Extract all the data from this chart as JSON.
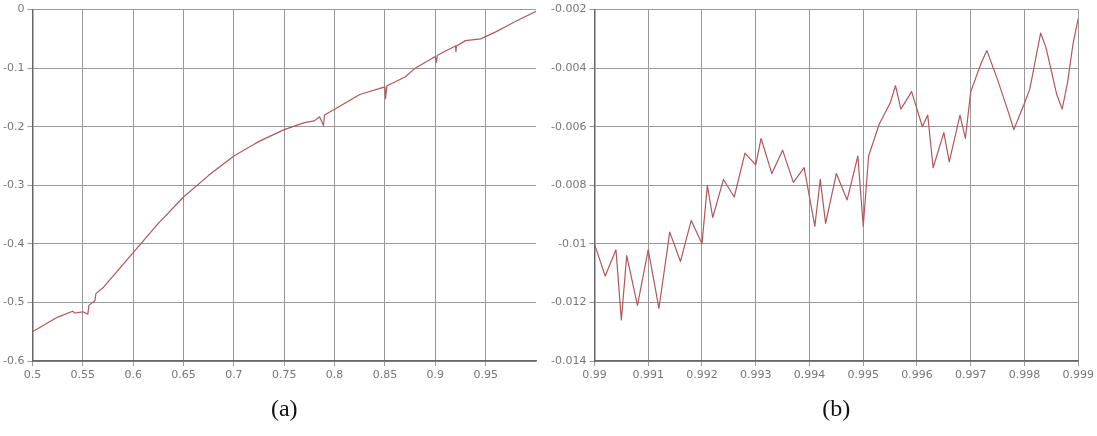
{
  "chart_data": [
    {
      "type": "line",
      "xlabel": "(a)",
      "x": [
        0.5,
        0.525,
        0.54,
        0.542,
        0.55,
        0.555,
        0.556,
        0.562,
        0.563,
        0.57,
        0.58,
        0.6,
        0.625,
        0.65,
        0.675,
        0.7,
        0.725,
        0.75,
        0.77,
        0.78,
        0.785,
        0.789,
        0.79,
        0.8,
        0.825,
        0.85,
        0.8505,
        0.852,
        0.87,
        0.88,
        0.9,
        0.901,
        0.902,
        0.92,
        0.9205,
        0.921,
        0.93,
        0.945,
        0.96,
        0.98,
        1.0
      ],
      "series": [
        {
          "color": "#b0585c",
          "values": [
            -0.55,
            -0.525,
            -0.515,
            -0.518,
            -0.516,
            -0.52,
            -0.505,
            -0.497,
            -0.485,
            -0.475,
            -0.455,
            -0.415,
            -0.365,
            -0.32,
            -0.283,
            -0.25,
            -0.225,
            -0.205,
            -0.193,
            -0.19,
            -0.183,
            -0.198,
            -0.18,
            -0.17,
            -0.145,
            -0.132,
            -0.152,
            -0.13,
            -0.115,
            -0.1,
            -0.08,
            -0.09,
            -0.078,
            -0.062,
            -0.072,
            -0.062,
            -0.053,
            -0.05,
            -0.038,
            -0.02,
            -0.003
          ]
        }
      ],
      "xlim": [
        0.5,
        1
      ],
      "xticks": [
        0.5,
        0.55,
        0.6,
        0.65,
        0.7,
        0.75,
        0.8,
        0.85,
        0.9,
        0.95
      ],
      "ylim": [
        -0.6,
        0
      ],
      "yticks": [
        -0.6,
        -0.5,
        -0.4,
        -0.3,
        -0.2,
        -0.1,
        0
      ],
      "grid": true,
      "legend": false,
      "marker": "none",
      "line_style": "solid"
    },
    {
      "type": "line",
      "xlabel": "(b)",
      "x": [
        0.99,
        0.9902,
        0.9904,
        0.9905,
        0.9906,
        0.9908,
        0.991,
        0.9912,
        0.9914,
        0.9916,
        0.9918,
        0.992,
        0.9921,
        0.9922,
        0.9924,
        0.9926,
        0.9928,
        0.993,
        0.9931,
        0.9933,
        0.9935,
        0.9937,
        0.9939,
        0.9941,
        0.9942,
        0.9943,
        0.9945,
        0.9947,
        0.9949,
        0.995,
        0.9951,
        0.9953,
        0.9955,
        0.9956,
        0.9957,
        0.9959,
        0.9961,
        0.9962,
        0.9963,
        0.9965,
        0.9966,
        0.9968,
        0.9969,
        0.997,
        0.9972,
        0.9973,
        0.9975,
        0.9977,
        0.9978,
        0.998,
        0.9981,
        0.9983,
        0.9984,
        0.9986,
        0.9987,
        0.9988,
        0.9989,
        0.999
      ],
      "series": [
        {
          "color": "#b0585c",
          "values": [
            -0.01,
            -0.0111,
            -0.0102,
            -0.0126,
            -0.0104,
            -0.0121,
            -0.0102,
            -0.0122,
            -0.0096,
            -0.0106,
            -0.0092,
            -0.01,
            -0.008,
            -0.0091,
            -0.0078,
            -0.0084,
            -0.0069,
            -0.0073,
            -0.0064,
            -0.0076,
            -0.0068,
            -0.0079,
            -0.0074,
            -0.0094,
            -0.0078,
            -0.0093,
            -0.0076,
            -0.0085,
            -0.007,
            -0.0094,
            -0.007,
            -0.0059,
            -0.0052,
            -0.0046,
            -0.0054,
            -0.0048,
            -0.006,
            -0.0056,
            -0.0074,
            -0.0062,
            -0.0072,
            -0.0056,
            -0.0064,
            -0.0048,
            -0.0038,
            -0.0034,
            -0.0044,
            -0.0055,
            -0.0061,
            -0.0052,
            -0.0047,
            -0.0028,
            -0.0033,
            -0.0049,
            -0.0054,
            -0.0045,
            -0.0032,
            -0.0023
          ]
        }
      ],
      "xlim": [
        0.99,
        0.999
      ],
      "xticks": [
        0.99,
        0.991,
        0.992,
        0.993,
        0.994,
        0.995,
        0.996,
        0.997,
        0.998,
        0.999
      ],
      "ylim": [
        -0.014,
        -0.002
      ],
      "yticks": [
        -0.014,
        -0.012,
        -0.01,
        -0.008,
        -0.006,
        -0.004,
        -0.002
      ],
      "grid": true,
      "legend": false,
      "marker": "none",
      "line_style": "solid"
    }
  ]
}
